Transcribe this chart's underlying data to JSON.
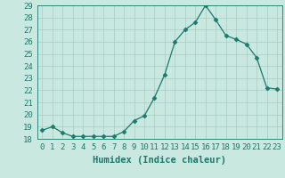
{
  "x": [
    0,
    1,
    2,
    3,
    4,
    5,
    6,
    7,
    8,
    9,
    10,
    11,
    12,
    13,
    14,
    15,
    16,
    17,
    18,
    19,
    20,
    21,
    22,
    23
  ],
  "y": [
    18.7,
    19.0,
    18.5,
    18.2,
    18.2,
    18.2,
    18.2,
    18.2,
    18.6,
    19.5,
    19.9,
    21.4,
    23.3,
    26.0,
    27.0,
    27.6,
    29.0,
    27.8,
    26.5,
    26.2,
    25.8,
    24.7,
    22.2,
    22.1
  ],
  "line_color": "#1a7a6e",
  "marker": "D",
  "marker_size": 2.5,
  "bg_color": "#c8e8e0",
  "grid_color": "#a8ccc4",
  "xlabel": "Humidex (Indice chaleur)",
  "ylim": [
    18,
    29
  ],
  "yticks": [
    18,
    19,
    20,
    21,
    22,
    23,
    24,
    25,
    26,
    27,
    28,
    29
  ],
  "xticks": [
    0,
    1,
    2,
    3,
    4,
    5,
    6,
    7,
    8,
    9,
    10,
    11,
    12,
    13,
    14,
    15,
    16,
    17,
    18,
    19,
    20,
    21,
    22,
    23
  ],
  "tick_color": "#1a7a6e",
  "label_fontsize": 7.5,
  "tick_fontsize": 6.5
}
